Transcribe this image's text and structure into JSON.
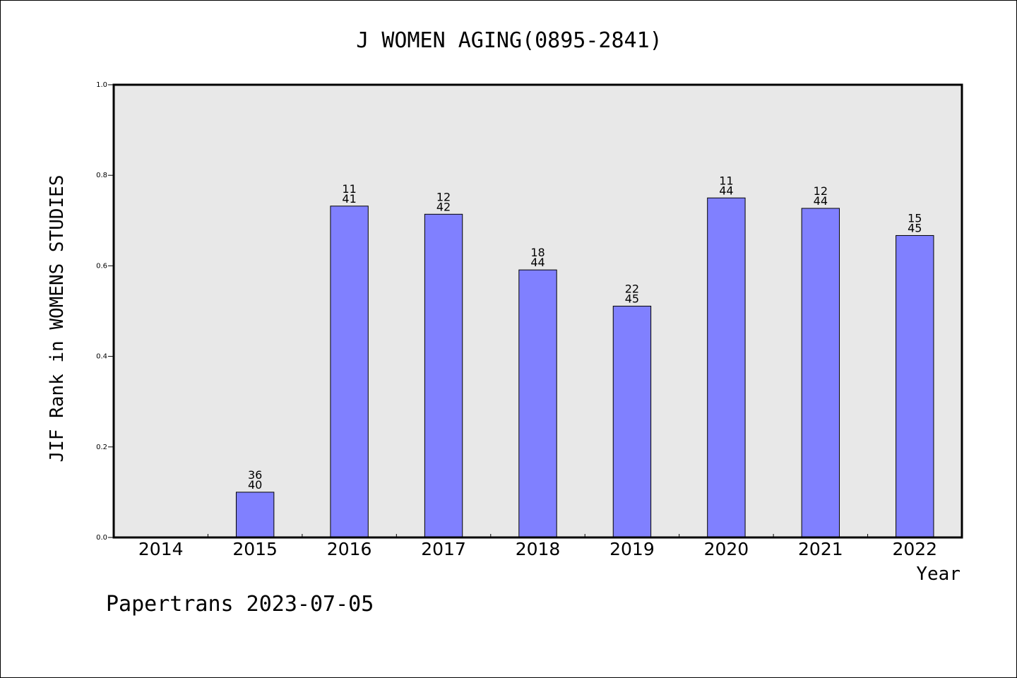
{
  "chart_data": {
    "type": "bar",
    "title": "J WOMEN AGING(0895-2841)",
    "xlabel": "Year",
    "ylabel": "JIF Rank in WOMENS STUDIES",
    "ylim": [
      0,
      1.0
    ],
    "yticks": [
      "0.0",
      "0.2",
      "0.4",
      "0.6",
      "0.8",
      "1.0"
    ],
    "categories": [
      "2014",
      "2015",
      "2016",
      "2017",
      "2018",
      "2019",
      "2020",
      "2021",
      "2022"
    ],
    "values": [
      null,
      0.1,
      0.732,
      0.714,
      0.591,
      0.511,
      0.75,
      0.727,
      0.667
    ],
    "ranks": [
      null,
      "36",
      "11",
      "12",
      "18",
      "22",
      "11",
      "12",
      "15"
    ],
    "totals": [
      null,
      "40",
      "41",
      "42",
      "44",
      "45",
      "44",
      "44",
      "45"
    ],
    "bar_color": "#8080ff",
    "plot_background": "#e8e8e8",
    "grid": false,
    "legend": "none"
  },
  "footer": "Papertrans 2023-07-05"
}
